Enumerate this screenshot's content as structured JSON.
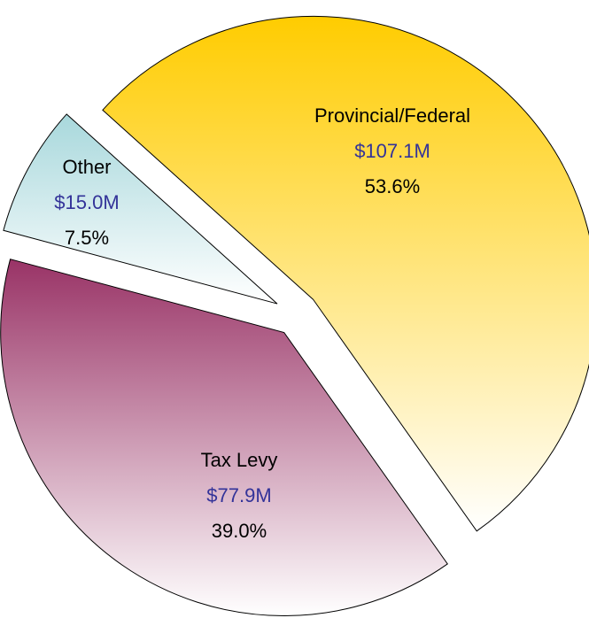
{
  "chart_data": {
    "type": "pie",
    "categories": [
      "Provincial/Federal",
      "Tax Levy",
      "Other"
    ],
    "values": [
      107.1,
      77.9,
      15.0
    ],
    "value_labels": [
      "$107.1M",
      "$77.9M",
      "$15.0M"
    ],
    "percents": [
      53.6,
      39.0,
      7.5
    ],
    "percent_labels": [
      "53.6%",
      "39.0%",
      "7.5%"
    ],
    "colors": [
      "#ffcc00",
      "#993366",
      "#a8d8dc"
    ]
  }
}
